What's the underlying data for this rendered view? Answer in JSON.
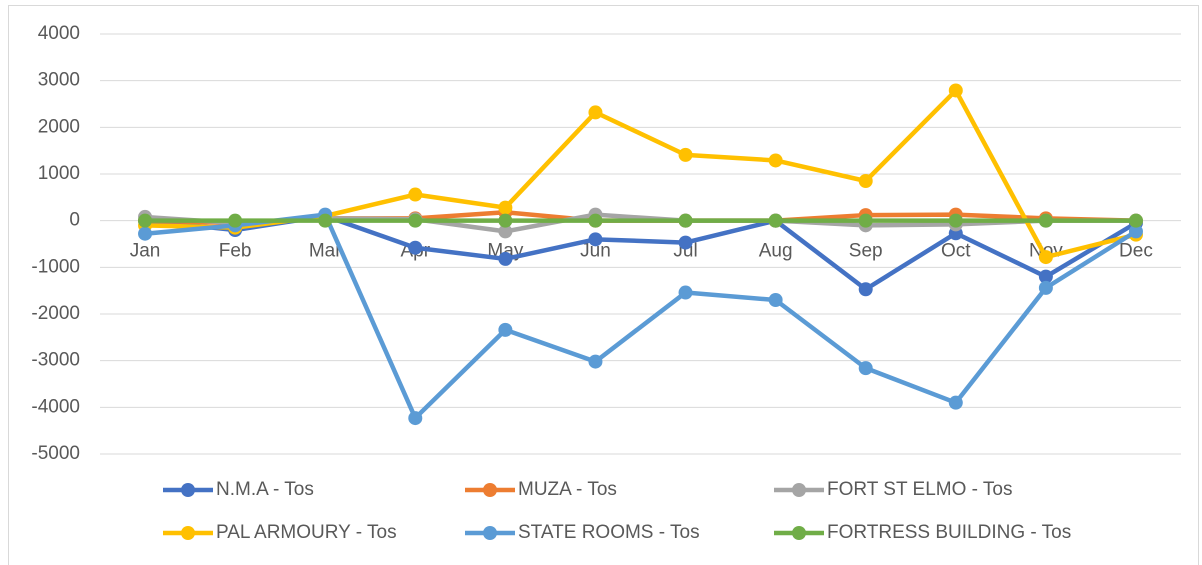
{
  "chart_data": {
    "type": "line",
    "categories": [
      "Jan",
      "Feb",
      "Mar",
      "Apr",
      "May",
      "Jun",
      "Jul",
      "Aug",
      "Sep",
      "Oct",
      "Nov",
      "Dec"
    ],
    "ylim": [
      -5000,
      4000
    ],
    "yticks": [
      -5000,
      -4000,
      -3000,
      -2000,
      -1000,
      0,
      1000,
      2000,
      3000,
      4000
    ],
    "grid": true,
    "legend": "bottom",
    "series": [
      {
        "name": "N.M.A - Tos",
        "color": "#4472c4",
        "values": [
          0,
          -200,
          100,
          -580,
          -820,
          -400,
          -470,
          0,
          -1470,
          -270,
          -1200,
          -50
        ]
      },
      {
        "name": "MUZA - Tos",
        "color": "#ed7d31",
        "values": [
          0,
          -50,
          50,
          50,
          180,
          0,
          0,
          0,
          120,
          130,
          50,
          0
        ]
      },
      {
        "name": "FORT ST ELMO - Tos",
        "color": "#a5a5a5",
        "values": [
          80,
          -50,
          50,
          30,
          -230,
          130,
          0,
          0,
          -100,
          -80,
          0,
          0
        ]
      },
      {
        "name": "PAL ARMOURY - Tos",
        "color": "#ffc000",
        "values": [
          -100,
          -150,
          100,
          560,
          280,
          2320,
          1410,
          1290,
          850,
          2790,
          -780,
          -300
        ]
      },
      {
        "name": "STATE ROOMS - Tos",
        "color": "#5b9bd5",
        "values": [
          -280,
          -100,
          130,
          -4230,
          -2340,
          -3020,
          -1540,
          -1700,
          -3160,
          -3900,
          -1440,
          -230
        ]
      },
      {
        "name": "FORTRESS BUILDING - Tos",
        "color": "#70ad47",
        "values": [
          0,
          0,
          0,
          0,
          0,
          0,
          0,
          0,
          0,
          0,
          0,
          0
        ]
      }
    ]
  }
}
